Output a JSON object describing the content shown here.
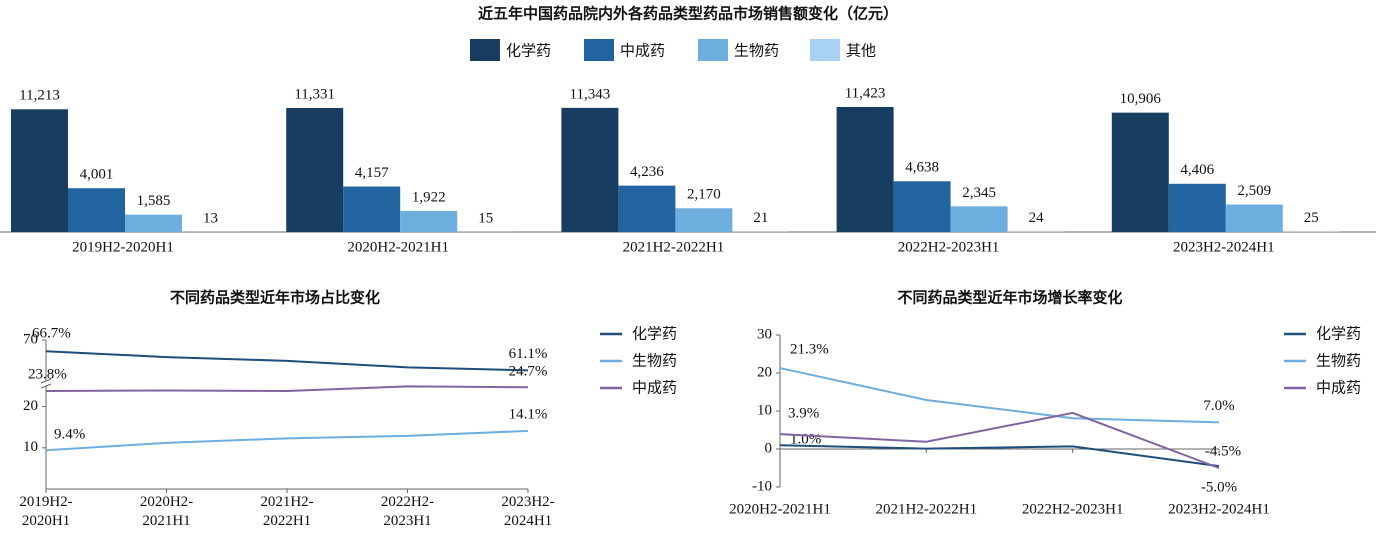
{
  "chart_data": [
    {
      "type": "bar",
      "title": "近五年中国药品院内外各药品类型药品市场销售额变化（亿元）",
      "categories": [
        "2019H2-2020H1",
        "2020H2-2021H1",
        "2021H2-2022H1",
        "2022H2-2023H1",
        "2023H2-2024H1"
      ],
      "series": [
        {
          "name": "化学药",
          "color": "#173d61",
          "values": [
            11213,
            11331,
            11343,
            11423,
            10906
          ],
          "value_labels": [
            "11,213",
            "11,331",
            "11,343",
            "11,423",
            "10,906"
          ]
        },
        {
          "name": "中成药",
          "color": "#22649f",
          "values": [
            4001,
            4157,
            4236,
            4638,
            4406
          ],
          "value_labels": [
            "4,001",
            "4,157",
            "4,236",
            "4,638",
            "4,406"
          ]
        },
        {
          "name": "生物药",
          "color": "#6eaede",
          "values": [
            1585,
            1922,
            2170,
            2345,
            2509
          ],
          "value_labels": [
            "1,585",
            "1,922",
            "2,170",
            "2,345",
            "2,509"
          ]
        },
        {
          "name": "其他",
          "color": "#a9d2f2",
          "values": [
            13,
            15,
            21,
            24,
            25
          ]
        }
      ]
    },
    {
      "type": "line",
      "title": "不同药品类型近年市场占比变化",
      "categories": [
        "2019H2-2020H1",
        "2020H2-2021H1",
        "2021H2-2022H1",
        "2022H2-2023H1",
        "2023H2-2024H1"
      ],
      "ylim": [
        0,
        70
      ],
      "y_break": [
        25,
        58
      ],
      "yticks": [
        10,
        20,
        70
      ],
      "series": [
        {
          "name": "化学药",
          "color": "#1f4e79",
          "values": [
            66.7,
            65.0,
            63.9,
            62.0,
            61.1
          ],
          "value_labels": [
            "66.7%",
            null,
            null,
            null,
            "61.1%"
          ]
        },
        {
          "name": "生物药",
          "color": "#6eaede",
          "values": [
            9.4,
            11.2,
            12.3,
            12.9,
            14.1
          ],
          "value_labels": [
            "9.4%",
            null,
            null,
            null,
            "14.1%"
          ]
        },
        {
          "name": "中成药",
          "color": "#8064a2",
          "values": [
            23.8,
            23.9,
            23.8,
            24.9,
            24.7
          ],
          "value_labels": [
            "23.8%",
            null,
            null,
            null,
            "24.7%"
          ]
        }
      ]
    },
    {
      "type": "line",
      "title": "不同药品类型近年市场增长率变化",
      "categories": [
        "2020H2-2021H1",
        "2021H2-2022H1",
        "2022H2-2023H1",
        "2023H2-2024H1"
      ],
      "ylim": [
        -10,
        30
      ],
      "yticks": [
        -10,
        0,
        10,
        20,
        30
      ],
      "series": [
        {
          "name": "化学药",
          "color": "#1f4e79",
          "values": [
            1.0,
            0.1,
            0.7,
            -4.5
          ],
          "value_labels": [
            "1.0%",
            null,
            null,
            "-4.5%"
          ]
        },
        {
          "name": "生物药",
          "color": "#6eaede",
          "values": [
            21.3,
            12.9,
            8.1,
            7.0
          ],
          "value_labels": [
            "21.3%",
            null,
            null,
            "7.0%"
          ]
        },
        {
          "name": "中成药",
          "color": "#8064a2",
          "values": [
            3.9,
            1.9,
            9.5,
            -5.0
          ],
          "value_labels": [
            "3.9%",
            null,
            null,
            "-5.0%"
          ]
        }
      ]
    }
  ]
}
